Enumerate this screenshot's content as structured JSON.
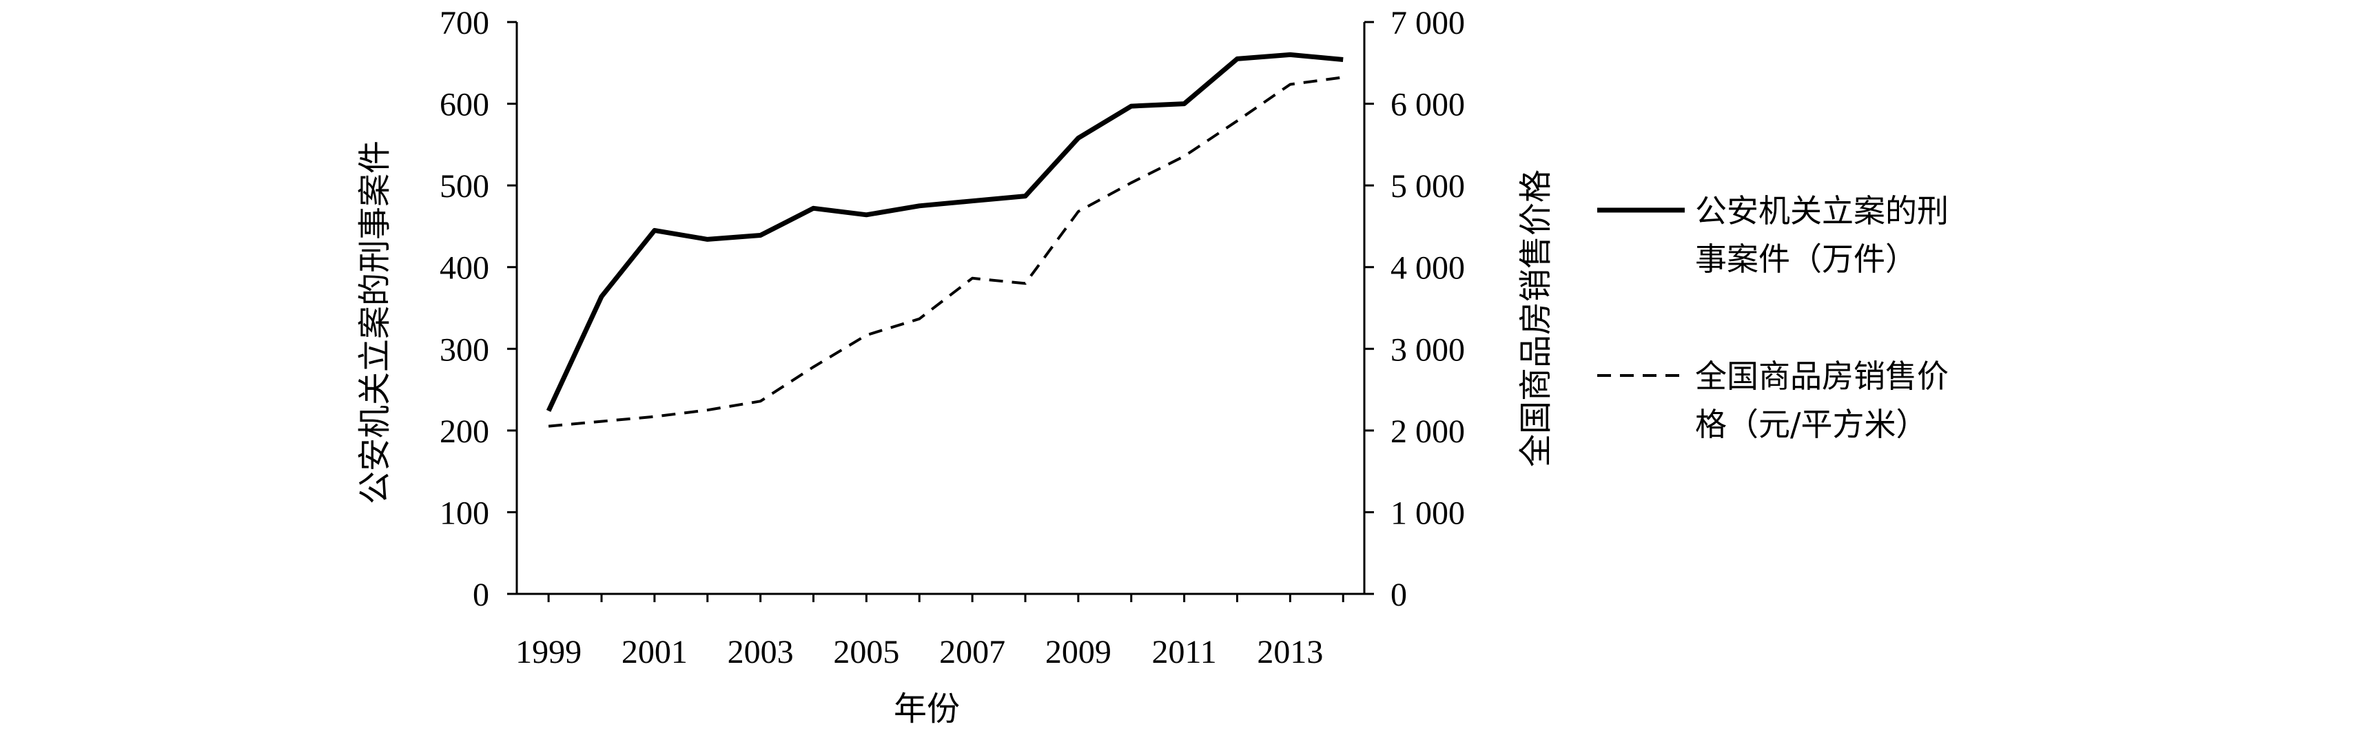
{
  "chart_data": {
    "type": "line",
    "x": [
      1999,
      2000,
      2001,
      2002,
      2003,
      2004,
      2005,
      2006,
      2007,
      2008,
      2009,
      2010,
      2011,
      2012,
      2013,
      2014
    ],
    "x_tick_labels": [
      "1999",
      "2001",
      "2003",
      "2005",
      "2007",
      "2009",
      "2011",
      "2013"
    ],
    "xlabel": "年份",
    "ylabel_left": "公安机关立案的刑事案件",
    "ylabel_right": "全国商品房销售价格",
    "ylim_left": [
      0,
      700
    ],
    "ylim_right": [
      0,
      7000
    ],
    "y_ticks_left": [
      "0",
      "100",
      "200",
      "300",
      "400",
      "500",
      "600",
      "700"
    ],
    "y_ticks_right": [
      "0",
      "1 000",
      "2 000",
      "3 000",
      "4 000",
      "5 000",
      "6 000",
      "7 000"
    ],
    "grid": false,
    "legend_position": "right",
    "series": [
      {
        "name_lines": [
          "公安机关立案的刑",
          "事案件（万件）"
        ],
        "axis": "left",
        "style": "solid",
        "color": "#000000",
        "values": [
          224,
          364,
          445,
          434,
          439,
          472,
          464,
          475,
          481,
          487,
          558,
          597,
          600,
          655,
          660,
          654
        ]
      },
      {
        "name_lines": [
          "全国商品房销售价",
          "格（元/平方米）"
        ],
        "axis": "right",
        "style": "dashed",
        "color": "#000000",
        "values": [
          2053,
          2112,
          2170,
          2250,
          2359,
          2778,
          3168,
          3367,
          3864,
          3800,
          4681,
          5032,
          5357,
          5791,
          6237,
          6324
        ]
      }
    ]
  }
}
